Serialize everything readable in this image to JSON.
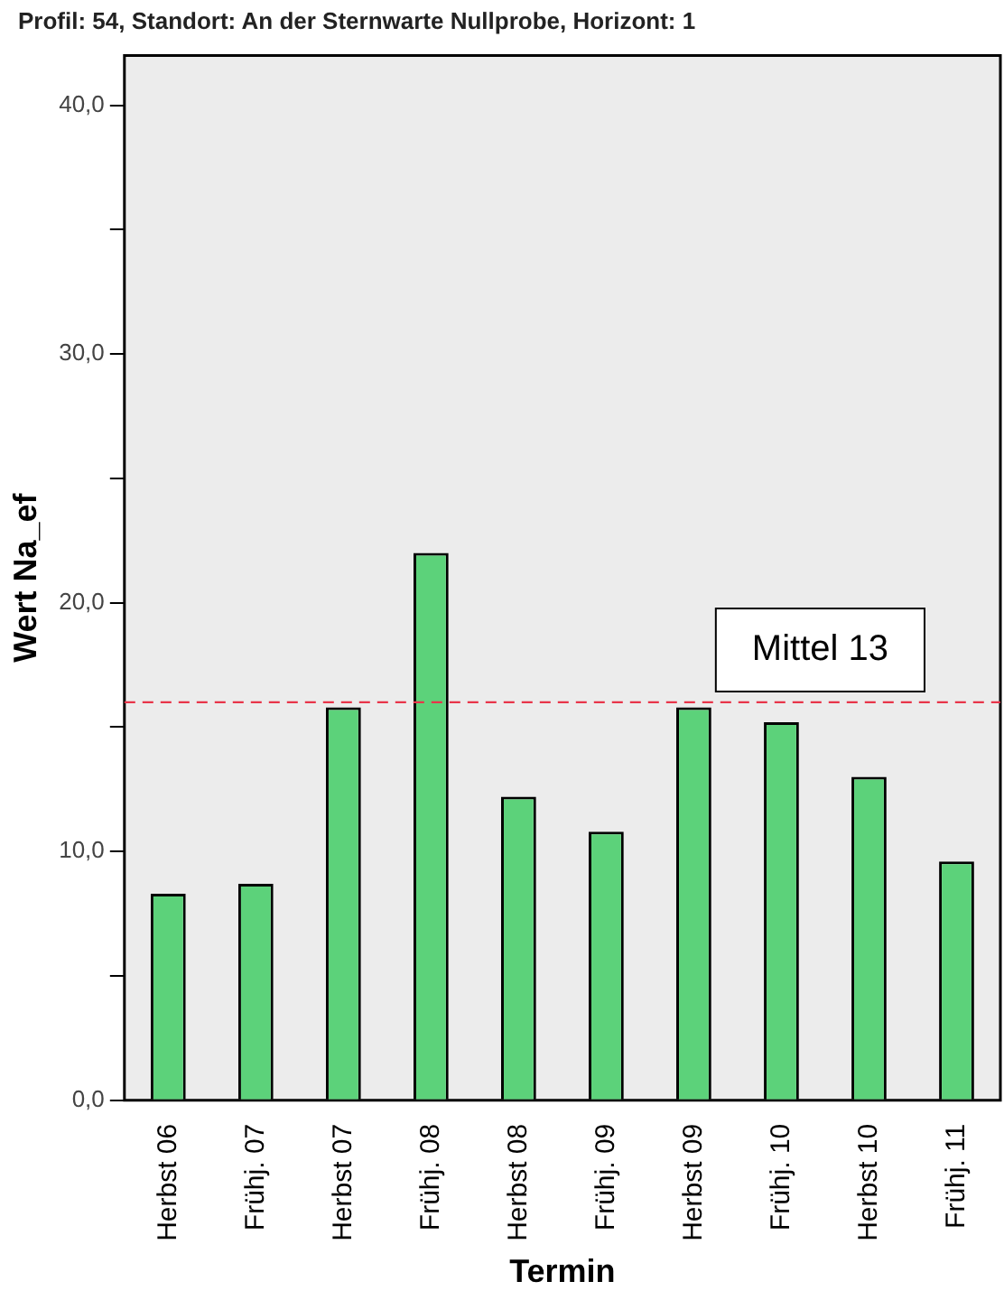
{
  "chart_data": {
    "type": "bar",
    "title": "Profil: 54, Standort: An der Sternwarte Nullprobe, Horizont: 1",
    "xlabel": "Termin",
    "ylabel": "Wert Na_ef",
    "categories": [
      "Herbst 06",
      "Frühj. 07",
      "Herbst 07",
      "Frühj. 08",
      "Herbst 08",
      "Frühj. 09",
      "Herbst 09",
      "Frühj. 10",
      "Herbst 10",
      "Frühj. 11"
    ],
    "values": [
      8.3,
      8.7,
      15.8,
      22.0,
      12.2,
      10.8,
      15.8,
      15.2,
      13.0,
      9.6
    ],
    "color": "#5cd27a",
    "ylim": [
      0,
      42
    ],
    "yticks": [
      {
        "value": 0,
        "label": "0,0"
      },
      {
        "value": 5,
        "label": null
      },
      {
        "value": 10,
        "label": "10,0"
      },
      {
        "value": 15,
        "label": null
      },
      {
        "value": 20,
        "label": "20,0"
      },
      {
        "value": 25,
        "label": null
      },
      {
        "value": 30,
        "label": "30,0"
      },
      {
        "value": 35,
        "label": null
      },
      {
        "value": 40,
        "label": "40,0"
      }
    ],
    "ref_lines": [
      {
        "axis": "y",
        "value": 16.0,
        "label": "Mittel 13",
        "color": "#e8354a",
        "line_style": "dashed"
      }
    ],
    "grid": false,
    "legend": false
  }
}
